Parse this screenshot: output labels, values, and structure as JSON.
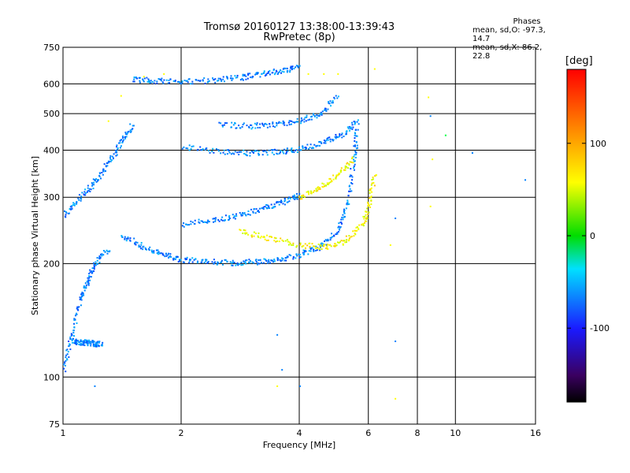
{
  "header": {
    "title_line1": "Tromsø 20160127 13:38:00-13:39:43",
    "title_line2": "RwPretec (8p)"
  },
  "phase_stats": {
    "heading": "Phases",
    "o_line": "mean, sd,O: -97.3, 14.7",
    "x_line": "mean, sd,X: 86.2, 22.8"
  },
  "colorbar": {
    "unit": "[deg]",
    "ticks": [
      "100",
      "0",
      "-100"
    ],
    "tick_values": [
      100,
      0,
      -100
    ],
    "range": [
      -180,
      180
    ]
  },
  "chart_data": {
    "type": "scatter",
    "xlabel": "Frequency [MHz]",
    "ylabel": "Stationary phase Virtual Height [km]",
    "xscale": "log",
    "yscale": "log",
    "xlim": [
      1,
      16
    ],
    "ylim": [
      75,
      750
    ],
    "xticks": [
      1,
      2,
      4,
      6,
      8,
      10,
      16
    ],
    "xtick_labels": [
      "1",
      "2",
      "4",
      "6",
      "8",
      "10",
      "16"
    ],
    "yticks": [
      75,
      100,
      200,
      300,
      400,
      500,
      600,
      750
    ],
    "ytick_labels": [
      "75",
      "100",
      "200",
      "300",
      "400",
      "500",
      "600",
      "750"
    ],
    "grid": true,
    "traces": [
      {
        "x": [
          1.5,
          1.7,
          2.0,
          2.4,
          2.8,
          3.2,
          3.6,
          4.0
        ],
        "y": [
          620,
          615,
          612,
          615,
          625,
          640,
          655,
          665
        ],
        "phase": -100
      },
      {
        "x": [
          2.0,
          2.5,
          3.0,
          3.5,
          4.0,
          4.6,
          5.2,
          5.6
        ],
        "y": [
          410,
          398,
          395,
          397,
          405,
          420,
          445,
          480
        ],
        "phase": -100
      },
      {
        "x": [
          2.5,
          3.0,
          3.5,
          4.0,
          4.5,
          5.0
        ],
        "y": [
          470,
          465,
          470,
          480,
          500,
          560
        ],
        "phase": -100
      },
      {
        "x": [
          1.4,
          1.6,
          1.8,
          2.0,
          2.3,
          2.7,
          3.1,
          3.5
        ],
        "y": [
          240,
          222,
          212,
          206,
          203,
          202,
          203,
          205
        ],
        "phase": -100
      },
      {
        "x": [
          3.5,
          4.0,
          4.5,
          5.0,
          5.3,
          5.5,
          5.6
        ],
        "y": [
          205,
          212,
          222,
          245,
          290,
          380,
          460
        ],
        "phase": -100
      },
      {
        "x": [
          2.0,
          2.4,
          2.8,
          3.2,
          3.6,
          4.0
        ],
        "y": [
          255,
          262,
          270,
          280,
          292,
          305
        ],
        "phase": -100
      },
      {
        "x": [
          2.8,
          3.3,
          4.0,
          4.6,
          5.2,
          5.8,
          6.0,
          6.2
        ],
        "y": [
          245,
          235,
          225,
          222,
          230,
          255,
          290,
          350
        ],
        "phase": 100
      },
      {
        "x": [
          4.0,
          4.5,
          5.0,
          5.5
        ],
        "y": [
          300,
          320,
          345,
          380
        ],
        "phase": 100
      },
      {
        "x": [
          1.0,
          1.1,
          1.2,
          1.3,
          1.4,
          1.5
        ],
        "y": [
          270,
          300,
          330,
          370,
          420,
          470
        ],
        "phase": -100
      },
      {
        "x": [
          1.0,
          1.05,
          1.1,
          1.15,
          1.2,
          1.3
        ],
        "y": [
          105,
          130,
          160,
          180,
          200,
          220
        ],
        "phase": -100
      },
      {
        "x": [
          1.05,
          1.1,
          1.15,
          1.2,
          1.25
        ],
        "y": [
          125,
          124,
          124,
          123,
          123
        ],
        "phase": -100
      }
    ],
    "points": [
      {
        "x": 1.6,
        "y": 630,
        "phase": 100
      },
      {
        "x": 1.8,
        "y": 640,
        "phase": 100
      },
      {
        "x": 4.2,
        "y": 640,
        "phase": 100
      },
      {
        "x": 4.6,
        "y": 640,
        "phase": 100
      },
      {
        "x": 5.0,
        "y": 640,
        "phase": 100
      },
      {
        "x": 6.2,
        "y": 660,
        "phase": 100
      },
      {
        "x": 8.5,
        "y": 555,
        "phase": 100
      },
      {
        "x": 8.6,
        "y": 495,
        "phase": -100
      },
      {
        "x": 9.4,
        "y": 440,
        "phase": 0
      },
      {
        "x": 8.7,
        "y": 380,
        "phase": 100
      },
      {
        "x": 11.0,
        "y": 395,
        "phase": -100
      },
      {
        "x": 15.0,
        "y": 335,
        "phase": -100
      },
      {
        "x": 8.6,
        "y": 285,
        "phase": 100
      },
      {
        "x": 7.0,
        "y": 265,
        "phase": -100
      },
      {
        "x": 6.8,
        "y": 225,
        "phase": 100
      },
      {
        "x": 3.5,
        "y": 130,
        "phase": -100
      },
      {
        "x": 3.6,
        "y": 105,
        "phase": -100
      },
      {
        "x": 7.0,
        "y": 125,
        "phase": -100
      },
      {
        "x": 7.0,
        "y": 88,
        "phase": 100
      },
      {
        "x": 3.5,
        "y": 95,
        "phase": 100
      },
      {
        "x": 4.0,
        "y": 95,
        "phase": -100
      },
      {
        "x": 1.3,
        "y": 480,
        "phase": 100
      },
      {
        "x": 1.4,
        "y": 560,
        "phase": 100
      },
      {
        "x": 1.2,
        "y": 95,
        "phase": -100
      }
    ]
  }
}
